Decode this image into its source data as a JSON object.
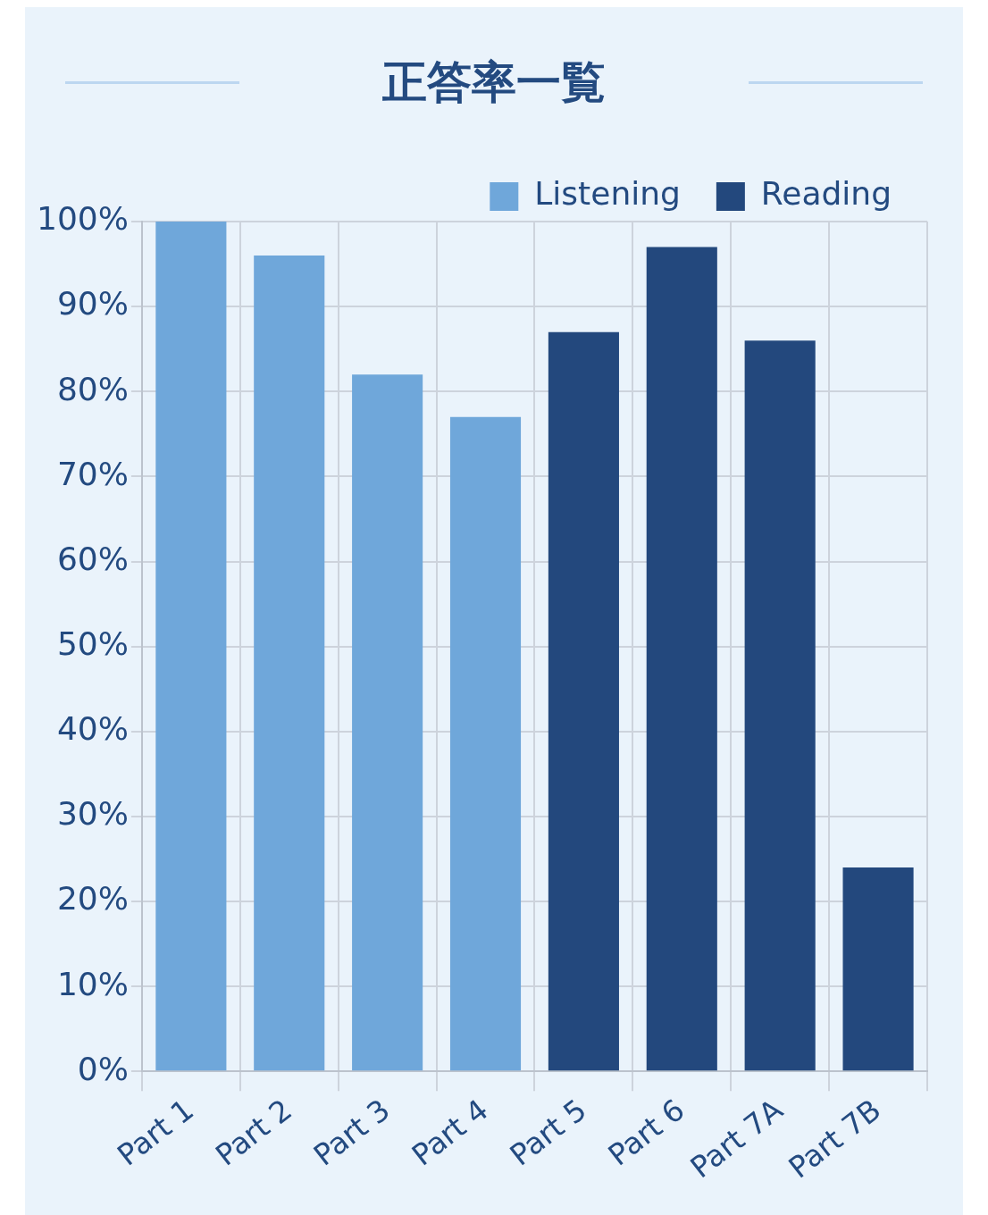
{
  "chart_data": {
    "type": "bar",
    "title": "正答率一覧",
    "categories": [
      "Part 1",
      "Part 2",
      "Part 3",
      "Part 4",
      "Part 5",
      "Part 6",
      "Part 7A",
      "Part 7B"
    ],
    "series": [
      {
        "name": "Listening",
        "color": "#6fa7da",
        "values": [
          100,
          96,
          82,
          77,
          null,
          null,
          null,
          null
        ]
      },
      {
        "name": "Reading",
        "color": "#23487d",
        "values": [
          null,
          null,
          null,
          null,
          87,
          97,
          86,
          24
        ]
      }
    ],
    "ylim": [
      0,
      100
    ],
    "yticks": [
      {
        "value": 0,
        "label": "0%"
      },
      {
        "value": 10,
        "label": "10%"
      },
      {
        "value": 20,
        "label": "20%"
      },
      {
        "value": 30,
        "label": "30%"
      },
      {
        "value": 40,
        "label": "40%"
      },
      {
        "value": 50,
        "label": "50%"
      },
      {
        "value": 60,
        "label": "60%"
      },
      {
        "value": 70,
        "label": "70%"
      },
      {
        "value": 80,
        "label": "80%"
      },
      {
        "value": 90,
        "label": "90%"
      },
      {
        "value": 100,
        "label": "100%"
      }
    ],
    "grid": true,
    "legend": "top right"
  }
}
